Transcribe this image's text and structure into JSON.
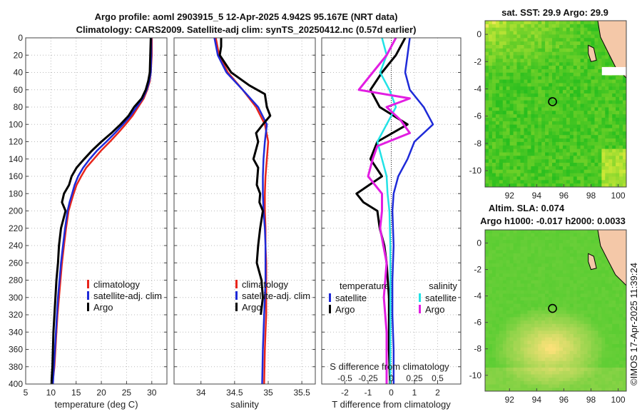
{
  "chart_data": {
    "type": "line",
    "title_line1": "Argo profile: aoml 2903915_5 12-Apr-2025 4.942S 95.167E (NRT data)",
    "title_line2": "Climatology: CARS2009. Satellite-adj clim: synTS_20250412.nc (0.57d earlier)",
    "depth_ticks": [
      "0",
      "20",
      "40",
      "60",
      "80",
      "100",
      "120",
      "140",
      "160",
      "180",
      "200",
      "220",
      "240",
      "260",
      "280",
      "300",
      "320",
      "340",
      "360",
      "380",
      "400"
    ],
    "depth_range": [
      0,
      400
    ],
    "panels": [
      {
        "name": "temperature",
        "xlabel": "temperature (deg C)",
        "xlim": [
          5,
          33
        ],
        "xticks": [
          5,
          10,
          15,
          20,
          25,
          30
        ],
        "xtick_labels": [
          "5",
          "10",
          "15",
          "20",
          "25",
          "30"
        ],
        "legend": [
          "climatology",
          "satellite-adj. clim",
          "Argo"
        ],
        "series": [
          {
            "name": "climatology",
            "color": "#e8261c",
            "x": [
              30.0,
              30.0,
              29.8,
              29.6,
              29.1,
              28.4,
              27.3,
              26.2,
              24.8,
              23.3,
              21.7,
              20.0,
              18.5,
              17.0,
              16.0,
              15.1,
              14.5,
              14.0,
              13.5,
              13.0,
              12.6,
              12.2,
              11.9,
              11.6,
              11.3,
              11.1,
              10.9,
              10.7,
              10.5,
              10.3
            ],
            "y": [
              0,
              20,
              40,
              50,
              60,
              70,
              80,
              90,
              100,
              110,
              120,
              130,
              140,
              150,
              160,
              170,
              180,
              190,
              200,
              220,
              240,
              260,
              280,
              300,
              320,
              340,
              360,
              380,
              390,
              400
            ]
          },
          {
            "name": "satellite-adj. clim",
            "color": "#1e2ad8",
            "x": [
              29.9,
              29.9,
              29.8,
              29.5,
              29.0,
              28.2,
              27.0,
              25.8,
              24.3,
              22.7,
              21.0,
              19.2,
              17.7,
              16.4,
              15.4,
              14.7,
              14.2,
              13.7,
              13.3,
              12.8,
              12.4,
              12.0,
              11.7,
              11.4,
              11.2,
              11.0,
              10.8,
              10.6,
              10.5,
              10.4
            ],
            "y": [
              0,
              20,
              40,
              50,
              60,
              70,
              80,
              90,
              100,
              110,
              120,
              130,
              140,
              150,
              160,
              170,
              180,
              190,
              200,
              220,
              240,
              260,
              280,
              300,
              320,
              340,
              360,
              380,
              390,
              400
            ]
          },
          {
            "name": "Argo",
            "color": "#000000",
            "x": [
              29.8,
              29.7,
              29.6,
              29.3,
              28.8,
              28.0,
              26.5,
              25.4,
              23.8,
              22.0,
              20.0,
              18.2,
              16.6,
              15.1,
              14.1,
              13.6,
              12.6,
              12.2,
              12.9,
              12.0,
              11.6,
              11.4,
              11.1,
              10.9,
              10.7,
              10.5,
              10.4,
              10.3,
              10.2,
              10.1
            ],
            "y": [
              0,
              20,
              40,
              50,
              60,
              70,
              80,
              90,
              100,
              110,
              120,
              130,
              140,
              150,
              160,
              170,
              180,
              190,
              200,
              220,
              240,
              260,
              280,
              300,
              320,
              340,
              360,
              380,
              390,
              400
            ]
          }
        ]
      },
      {
        "name": "salinity",
        "xlabel": "salinity",
        "xlim": [
          33.6,
          35.7
        ],
        "xticks": [
          34,
          34.5,
          35,
          35.5
        ],
        "xtick_labels": [
          "34",
          "34.5",
          "35",
          "35.5"
        ],
        "legend": [
          "climatology",
          "satellite-adj. clim",
          "Argo"
        ],
        "series": [
          {
            "name": "climatology",
            "color": "#e8261c",
            "x": [
              34.22,
              34.27,
              34.4,
              34.62,
              34.82,
              34.95,
              35.0,
              34.98,
              34.96,
              34.95,
              34.95,
              34.96,
              34.96,
              34.97,
              34.97,
              34.97,
              34.97,
              34.96,
              34.95,
              34.94
            ],
            "y": [
              0,
              20,
              40,
              60,
              80,
              100,
              120,
              140,
              160,
              180,
              200,
              220,
              240,
              260,
              280,
              300,
              320,
              340,
              360,
              400
            ]
          },
          {
            "name": "satellite-adj. clim",
            "color": "#1e2ad8",
            "x": [
              34.2,
              34.25,
              34.38,
              34.62,
              34.85,
              34.98,
              34.95,
              34.93,
              34.92,
              34.92,
              34.93,
              34.95,
              34.96,
              34.96,
              34.96,
              34.95,
              34.94,
              34.93,
              34.92,
              34.91
            ],
            "y": [
              0,
              20,
              40,
              60,
              80,
              100,
              120,
              140,
              160,
              180,
              200,
              220,
              240,
              260,
              280,
              300,
              320,
              340,
              360,
              400
            ]
          },
          {
            "name": "Argo",
            "color": "#000000",
            "x": [
              34.3,
              34.3,
              34.28,
              34.45,
              34.72,
              34.95,
              34.98,
              35.03,
              34.92,
              34.82,
              34.85,
              34.78,
              34.85,
              34.83,
              34.88,
              34.87,
              34.92,
              34.88,
              34.85,
              34.83,
              34.9,
              34.92,
              34.89
            ],
            "y": [
              0,
              10,
              20,
              40,
              55,
              65,
              80,
              90,
              100,
              110,
              120,
              140,
              150,
              170,
              180,
              190,
              200,
              220,
              240,
              260,
              280,
              300,
              320
            ]
          }
        ]
      },
      {
        "name": "difference",
        "xlabel": "T difference from climatology",
        "xlim": [
          -3,
          3
        ],
        "xticks": [
          -2,
          -1,
          0,
          1,
          2
        ],
        "xtick_labels": [
          "-2",
          "-1",
          "0",
          "1",
          "2"
        ],
        "top_axis_label": "S difference from climatology",
        "top_ticks": [
          -0.5,
          -0.25,
          0,
          0.25,
          0.5
        ],
        "top_tick_labels": [
          "-0.5",
          "-0.25",
          "0",
          "0.25",
          "0.5"
        ],
        "legend_temperature_title": "temperature",
        "legend_salinity_title": "salinity",
        "legend_temperature": [
          "satellite",
          "Argo"
        ],
        "legend_salinity": [
          "satellite",
          "Argo"
        ],
        "series": [
          {
            "name": "T satellite",
            "color": "#1e2ad8",
            "x": [
              0.8,
              0.7,
              0.6,
              0.8,
              1.4,
              1.8,
              1.0,
              0.7,
              0.3,
              0.1,
              0.05,
              0.1,
              0.05,
              0.05,
              0.1,
              0.1
            ],
            "y": [
              0,
              20,
              40,
              60,
              80,
              100,
              120,
              140,
              160,
              180,
              200,
              240,
              280,
              320,
              360,
              400
            ]
          },
          {
            "name": "T Argo",
            "color": "#000000",
            "x": [
              0.6,
              0.2,
              -0.4,
              -0.9,
              -0.5,
              0.7,
              -0.6,
              -0.9,
              -0.4,
              -1.5,
              -1.2,
              -0.6,
              -0.5,
              -0.3,
              -0.2,
              -0.1,
              -0.1,
              -0.05
            ],
            "y": [
              0,
              20,
              40,
              60,
              80,
              100,
              120,
              140,
              160,
              180,
              190,
              200,
              220,
              240,
              260,
              300,
              360,
              400
            ]
          },
          {
            "name": "S satellite",
            "color": "#22e2e6",
            "x": [
              -0.1,
              -0.05,
              -0.12,
              -0.02,
              0.05,
              -0.05,
              -0.15,
              -0.1,
              -0.05,
              -0.04,
              -0.02,
              -0.01,
              -0.01,
              -0.01,
              -0.01
            ],
            "y": [
              0,
              20,
              40,
              60,
              80,
              100,
              120,
              140,
              160,
              180,
              200,
              240,
              280,
              340,
              400
            ]
          },
          {
            "name": "S Argo",
            "color": "#e21ee2",
            "x": [
              0.05,
              -0.05,
              -0.2,
              -0.35,
              0.2,
              -0.05,
              0.1,
              0.2,
              -0.15,
              -0.2,
              -0.25,
              -0.1,
              -0.1,
              -0.12,
              -0.05,
              -0.08,
              -0.05,
              -0.05
            ],
            "y": [
              0,
              20,
              40,
              60,
              70,
              80,
              95,
              110,
              125,
              140,
              160,
              180,
              200,
              220,
              260,
              300,
              340,
              400
            ]
          }
        ]
      }
    ],
    "maps": [
      {
        "name": "sst-map",
        "title": "sat. SST: 29.9 Argo: 29.9",
        "lon_ticks": [
          "92",
          "94",
          "96",
          "98",
          "100"
        ],
        "lat_ticks": [
          "0",
          "-2",
          "-4",
          "-6",
          "-8",
          "-10"
        ],
        "lon_range": [
          90.2,
          100.6
        ],
        "lat_range": [
          -11.2,
          1.0
        ],
        "argo_position": {
          "lon": 95.167,
          "lat": -4.942
        }
      },
      {
        "name": "sla-map",
        "title_line1": "Altim. SLA: 0.074",
        "title_line2": "Argo h1000: -0.017 h2000: 0.0033",
        "lon_ticks": [
          "92",
          "94",
          "96",
          "98",
          "100"
        ],
        "lat_ticks": [
          "0",
          "-2",
          "-4",
          "-6",
          "-8",
          "-10"
        ],
        "lon_range": [
          90.2,
          100.6
        ],
        "lat_range": [
          -11.2,
          1.0
        ],
        "argo_position": {
          "lon": 95.167,
          "lat": -4.942
        }
      }
    ],
    "side_label": "©IMOS 17-Apr-2025 11:39:24"
  }
}
